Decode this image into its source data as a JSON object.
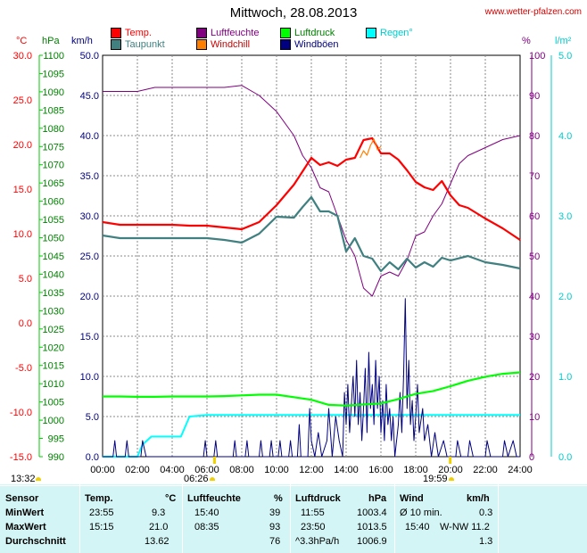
{
  "title": "Mittwoch, 28.08.2013",
  "source": "www.wetter-pfalzen.com",
  "legend": [
    {
      "label": "Temp.",
      "color": "#ff0000"
    },
    {
      "label": "Luftfeuchte",
      "color": "#800080"
    },
    {
      "label": "Luftdruck",
      "color": "#00ff00"
    },
    {
      "label": "Regen°",
      "color": "#00ffff"
    },
    {
      "label": "Taupunkt",
      "color": "#408080"
    },
    {
      "label": "Windchill",
      "color": "#ff8000"
    },
    {
      "label": "Windböen",
      "color": "#000080"
    }
  ],
  "units": {
    "temp": "°C",
    "press": "hPa",
    "wind": "km/h",
    "hum": "%",
    "rain": "l/m²"
  },
  "axes": {
    "temp_ticks": [
      "30.0",
      "25.0",
      "20.0",
      "15.0",
      "10.0",
      "5.0",
      "0.0",
      "-5.0",
      "-10.0",
      "-15.0"
    ],
    "press_ticks": [
      "1100",
      "1095",
      "1090",
      "1085",
      "1080",
      "1075",
      "1070",
      "1065",
      "1060",
      "1055",
      "1050",
      "1045",
      "1040",
      "1035",
      "1030",
      "1025",
      "1020",
      "1015",
      "1010",
      "1005",
      "1000",
      "995",
      "990"
    ],
    "wind_ticks": [
      "50.0",
      "45.0",
      "40.0",
      "35.0",
      "30.0",
      "25.0",
      "20.0",
      "15.0",
      "10.0",
      "5.0",
      "0.0"
    ],
    "hum_ticks": [
      "100",
      "90",
      "80",
      "70",
      "60",
      "50",
      "40",
      "30",
      "20",
      "10",
      "0"
    ],
    "rain_ticks": [
      "5.0",
      "4.0",
      "3.0",
      "2.0",
      "1.0",
      "0.0"
    ],
    "x_ticks": [
      "00:00",
      "02:00",
      "04:00",
      "06:00",
      "08:00",
      "10:00",
      "12:00",
      "14:00",
      "16:00",
      "18:00",
      "20:00",
      "22:00",
      "24:00"
    ]
  },
  "sun": {
    "rise": "06:26",
    "set": "19:59",
    "daylen": "13:32"
  },
  "chart_data": {
    "type": "line",
    "x_unit": "hour",
    "xlim": [
      0,
      24
    ],
    "series": [
      {
        "name": "Temp.",
        "axis": "temp",
        "ylim": [
          -15,
          30
        ],
        "color": "#ff0000",
        "points": [
          [
            0,
            11.3
          ],
          [
            1,
            11.0
          ],
          [
            2,
            11.0
          ],
          [
            3,
            11.0
          ],
          [
            4,
            11.0
          ],
          [
            5,
            10.9
          ],
          [
            6,
            10.9
          ],
          [
            7,
            10.7
          ],
          [
            8,
            10.5
          ],
          [
            9,
            11.3
          ],
          [
            10,
            13.2
          ],
          [
            11,
            15.5
          ],
          [
            11.5,
            17.0
          ],
          [
            12,
            18.5
          ],
          [
            12.5,
            17.7
          ],
          [
            13,
            18.0
          ],
          [
            13.5,
            17.6
          ],
          [
            14,
            18.3
          ],
          [
            14.5,
            18.5
          ],
          [
            15,
            20.5
          ],
          [
            15.5,
            20.7
          ],
          [
            16,
            19.0
          ],
          [
            16.5,
            19.0
          ],
          [
            17,
            18.3
          ],
          [
            17.5,
            17.1
          ],
          [
            18,
            15.8
          ],
          [
            18.5,
            15.2
          ],
          [
            19,
            14.9
          ],
          [
            19.5,
            15.9
          ],
          [
            20,
            14.3
          ],
          [
            20.5,
            13.2
          ],
          [
            21,
            12.9
          ],
          [
            22,
            11.7
          ],
          [
            23,
            10.6
          ],
          [
            24,
            9.3
          ]
        ]
      },
      {
        "name": "Taupunkt",
        "axis": "temp",
        "ylim": [
          -15,
          30
        ],
        "color": "#408080",
        "points": [
          [
            0,
            9.8
          ],
          [
            1,
            9.5
          ],
          [
            2,
            9.5
          ],
          [
            3,
            9.5
          ],
          [
            4,
            9.5
          ],
          [
            5,
            9.5
          ],
          [
            6,
            9.5
          ],
          [
            7,
            9.3
          ],
          [
            8,
            9.0
          ],
          [
            9,
            10.0
          ],
          [
            10,
            11.9
          ],
          [
            11,
            11.8
          ],
          [
            11.5,
            13.0
          ],
          [
            12,
            14.1
          ],
          [
            12.5,
            12.5
          ],
          [
            13,
            12.5
          ],
          [
            13.5,
            12.0
          ],
          [
            14,
            8.0
          ],
          [
            14.5,
            9.5
          ],
          [
            15,
            7.5
          ],
          [
            15.5,
            7.2
          ],
          [
            16,
            5.8
          ],
          [
            16.5,
            6.8
          ],
          [
            17,
            6.0
          ],
          [
            17.5,
            7.2
          ],
          [
            18,
            6.2
          ],
          [
            18.5,
            6.8
          ],
          [
            19,
            6.3
          ],
          [
            19.5,
            7.3
          ],
          [
            20,
            7.0
          ],
          [
            21,
            7.5
          ],
          [
            22,
            6.8
          ],
          [
            23,
            6.5
          ],
          [
            24,
            6.1
          ]
        ]
      },
      {
        "name": "Luftfeuchte",
        "axis": "hum",
        "ylim": [
          0,
          100
        ],
        "color": "#800080",
        "points": [
          [
            0,
            91
          ],
          [
            1,
            91
          ],
          [
            2,
            91
          ],
          [
            3,
            92
          ],
          [
            4,
            92
          ],
          [
            5,
            92
          ],
          [
            6,
            92
          ],
          [
            7,
            92
          ],
          [
            8,
            92.5
          ],
          [
            9,
            90
          ],
          [
            10,
            86
          ],
          [
            11,
            80
          ],
          [
            11.5,
            75
          ],
          [
            12,
            72
          ],
          [
            12.5,
            67
          ],
          [
            13,
            66
          ],
          [
            13.5,
            60
          ],
          [
            14,
            54
          ],
          [
            14.5,
            50
          ],
          [
            15,
            42
          ],
          [
            15.5,
            40
          ],
          [
            16,
            45
          ],
          [
            16.5,
            46
          ],
          [
            17,
            45
          ],
          [
            17.5,
            49
          ],
          [
            18,
            55
          ],
          [
            18.5,
            56
          ],
          [
            19,
            60
          ],
          [
            19.5,
            63
          ],
          [
            20,
            68
          ],
          [
            20.5,
            73
          ],
          [
            21,
            75
          ],
          [
            22,
            77
          ],
          [
            23,
            79
          ],
          [
            24,
            80
          ]
        ]
      },
      {
        "name": "Luftdruck",
        "axis": "press",
        "ylim": [
          990,
          1100
        ],
        "color": "#00ff00",
        "points": [
          [
            0,
            1006.5
          ],
          [
            1,
            1006.5
          ],
          [
            2,
            1006.4
          ],
          [
            3,
            1006.4
          ],
          [
            4,
            1006.5
          ],
          [
            5,
            1006.5
          ],
          [
            6,
            1006.5
          ],
          [
            7,
            1006.6
          ],
          [
            8,
            1006.8
          ],
          [
            9,
            1007.0
          ],
          [
            10,
            1007.0
          ],
          [
            11,
            1006.3
          ],
          [
            12,
            1005.6
          ],
          [
            13,
            1004.2
          ],
          [
            14,
            1004.0
          ],
          [
            15,
            1004.3
          ],
          [
            16,
            1004.6
          ],
          [
            17,
            1005.8
          ],
          [
            18,
            1007.2
          ],
          [
            19,
            1008.0
          ],
          [
            20,
            1009.3
          ],
          [
            21,
            1010.8
          ],
          [
            22,
            1011.9
          ],
          [
            23,
            1012.7
          ],
          [
            24,
            1013.1
          ]
        ]
      },
      {
        "name": "Regen°",
        "axis": "rain",
        "ylim": [
          0,
          5
        ],
        "color": "#00ffff",
        "points": [
          [
            0,
            0
          ],
          [
            2.0,
            0
          ],
          [
            2.3,
            0.15
          ],
          [
            2.8,
            0.25
          ],
          [
            4.5,
            0.25
          ],
          [
            5,
            0.5
          ],
          [
            6,
            0.52
          ],
          [
            8,
            0.52
          ],
          [
            24,
            0.52
          ]
        ]
      },
      {
        "name": "Windchill",
        "axis": "temp",
        "ylim": [
          -15,
          30
        ],
        "color": "#ff8000",
        "points": [
          [
            14.8,
            18.5
          ],
          [
            15,
            19.3
          ],
          [
            15.2,
            18.8
          ],
          [
            15.4,
            19.9
          ],
          [
            15.6,
            20.6
          ],
          [
            15.8,
            19.4
          ],
          [
            16,
            19.8
          ]
        ]
      },
      {
        "name": "Windböen",
        "axis": "wind",
        "ylim": [
          0,
          50
        ],
        "color": "#000080",
        "points": [
          [
            0,
            0
          ],
          [
            0.6,
            0
          ],
          [
            0.7,
            2
          ],
          [
            0.8,
            0
          ],
          [
            1.3,
            0
          ],
          [
            1.4,
            2
          ],
          [
            1.5,
            0
          ],
          [
            2.2,
            0
          ],
          [
            2.3,
            2
          ],
          [
            2.5,
            0
          ],
          [
            5.8,
            0
          ],
          [
            5.9,
            2
          ],
          [
            6.0,
            0
          ],
          [
            6.4,
            0
          ],
          [
            6.5,
            2
          ],
          [
            6.6,
            0
          ],
          [
            7.5,
            0
          ],
          [
            7.6,
            2
          ],
          [
            7.7,
            0
          ],
          [
            8.2,
            0
          ],
          [
            8.3,
            2
          ],
          [
            8.4,
            0
          ],
          [
            9.0,
            0
          ],
          [
            9.1,
            2
          ],
          [
            9.2,
            0
          ],
          [
            9.6,
            0
          ],
          [
            9.7,
            2
          ],
          [
            9.8,
            0
          ],
          [
            10.1,
            0
          ],
          [
            10.2,
            2
          ],
          [
            10.3,
            0
          ],
          [
            10.7,
            0
          ],
          [
            10.8,
            2
          ],
          [
            10.9,
            0
          ],
          [
            11.2,
            0
          ],
          [
            11.3,
            4
          ],
          [
            11.4,
            0
          ],
          [
            11.8,
            0
          ],
          [
            11.9,
            6
          ],
          [
            12.0,
            2
          ],
          [
            12.2,
            0
          ],
          [
            12.4,
            3
          ],
          [
            12.6,
            0
          ],
          [
            12.9,
            2
          ],
          [
            13.0,
            6
          ],
          [
            13.2,
            0
          ],
          [
            13.4,
            5
          ],
          [
            13.6,
            2
          ],
          [
            13.8,
            0
          ],
          [
            13.9,
            8
          ],
          [
            14.0,
            4
          ],
          [
            14.1,
            9
          ],
          [
            14.2,
            3
          ],
          [
            14.4,
            10
          ],
          [
            14.5,
            5
          ],
          [
            14.6,
            12
          ],
          [
            14.7,
            4
          ],
          [
            14.8,
            8
          ],
          [
            14.9,
            2
          ],
          [
            15.0,
            6
          ],
          [
            15.1,
            11
          ],
          [
            15.2,
            3
          ],
          [
            15.3,
            13
          ],
          [
            15.4,
            6
          ],
          [
            15.5,
            9
          ],
          [
            15.6,
            4
          ],
          [
            15.7,
            12
          ],
          [
            15.8,
            6
          ],
          [
            15.9,
            10
          ],
          [
            16.0,
            3
          ],
          [
            16.1,
            7
          ],
          [
            16.2,
            2
          ],
          [
            16.3,
            9
          ],
          [
            16.4,
            4
          ],
          [
            16.5,
            6
          ],
          [
            16.6,
            2
          ],
          [
            16.7,
            5
          ],
          [
            16.8,
            0
          ],
          [
            17.0,
            4
          ],
          [
            17.1,
            8
          ],
          [
            17.2,
            3
          ],
          [
            17.3,
            10
          ],
          [
            17.4,
            19.7
          ],
          [
            17.5,
            6
          ],
          [
            17.6,
            12
          ],
          [
            17.7,
            4
          ],
          [
            17.8,
            7
          ],
          [
            17.9,
            2
          ],
          [
            18.0,
            5
          ],
          [
            18.1,
            9
          ],
          [
            18.2,
            3
          ],
          [
            18.4,
            6
          ],
          [
            18.5,
            2
          ],
          [
            18.7,
            4
          ],
          [
            18.9,
            0
          ],
          [
            19.1,
            3
          ],
          [
            19.3,
            0
          ],
          [
            19.6,
            2
          ],
          [
            19.8,
            0
          ],
          [
            20.3,
            0
          ],
          [
            20.4,
            2
          ],
          [
            20.6,
            0
          ],
          [
            21.0,
            0
          ],
          [
            21.1,
            2
          ],
          [
            21.3,
            0
          ],
          [
            22.0,
            0
          ],
          [
            22.1,
            2
          ],
          [
            22.3,
            0
          ],
          [
            23.0,
            0
          ],
          [
            23.1,
            2
          ],
          [
            23.3,
            0
          ],
          [
            23.6,
            2
          ],
          [
            23.8,
            0
          ],
          [
            24,
            0
          ]
        ]
      }
    ]
  },
  "table": {
    "headers": {
      "sensor": "Sensor",
      "temp": "Temp.",
      "temp_unit": "°C",
      "hum": "Luftfeuchte",
      "hum_unit": "%",
      "press": "Luftdruck",
      "press_unit": "hPa",
      "wind": "Wind",
      "wind_unit": "km/h"
    },
    "rows": [
      {
        "label": "MinWert",
        "temp_time": "23:55",
        "temp_val": "9.3",
        "hum_time": "15:40",
        "hum_val": "39",
        "press_time": "11:55",
        "press_val": "1003.4",
        "wind_time": "Ø 10 min.",
        "wind_val": "0.3"
      },
      {
        "label": "MaxWert",
        "temp_time": "15:15",
        "temp_val": "21.0",
        "hum_time": "08:35",
        "hum_val": "93",
        "press_time": "23:50",
        "press_val": "1013.5",
        "wind_time": "15:40",
        "wind_val": "W-NW 11.2"
      },
      {
        "label": "Durchschnitt",
        "temp_time": "",
        "temp_val": "13.62",
        "hum_time": "",
        "hum_val": "76",
        "press_time": "^3.3hPa/h",
        "press_val": "1006.9",
        "wind_time": "",
        "wind_val": "1.3"
      }
    ]
  }
}
